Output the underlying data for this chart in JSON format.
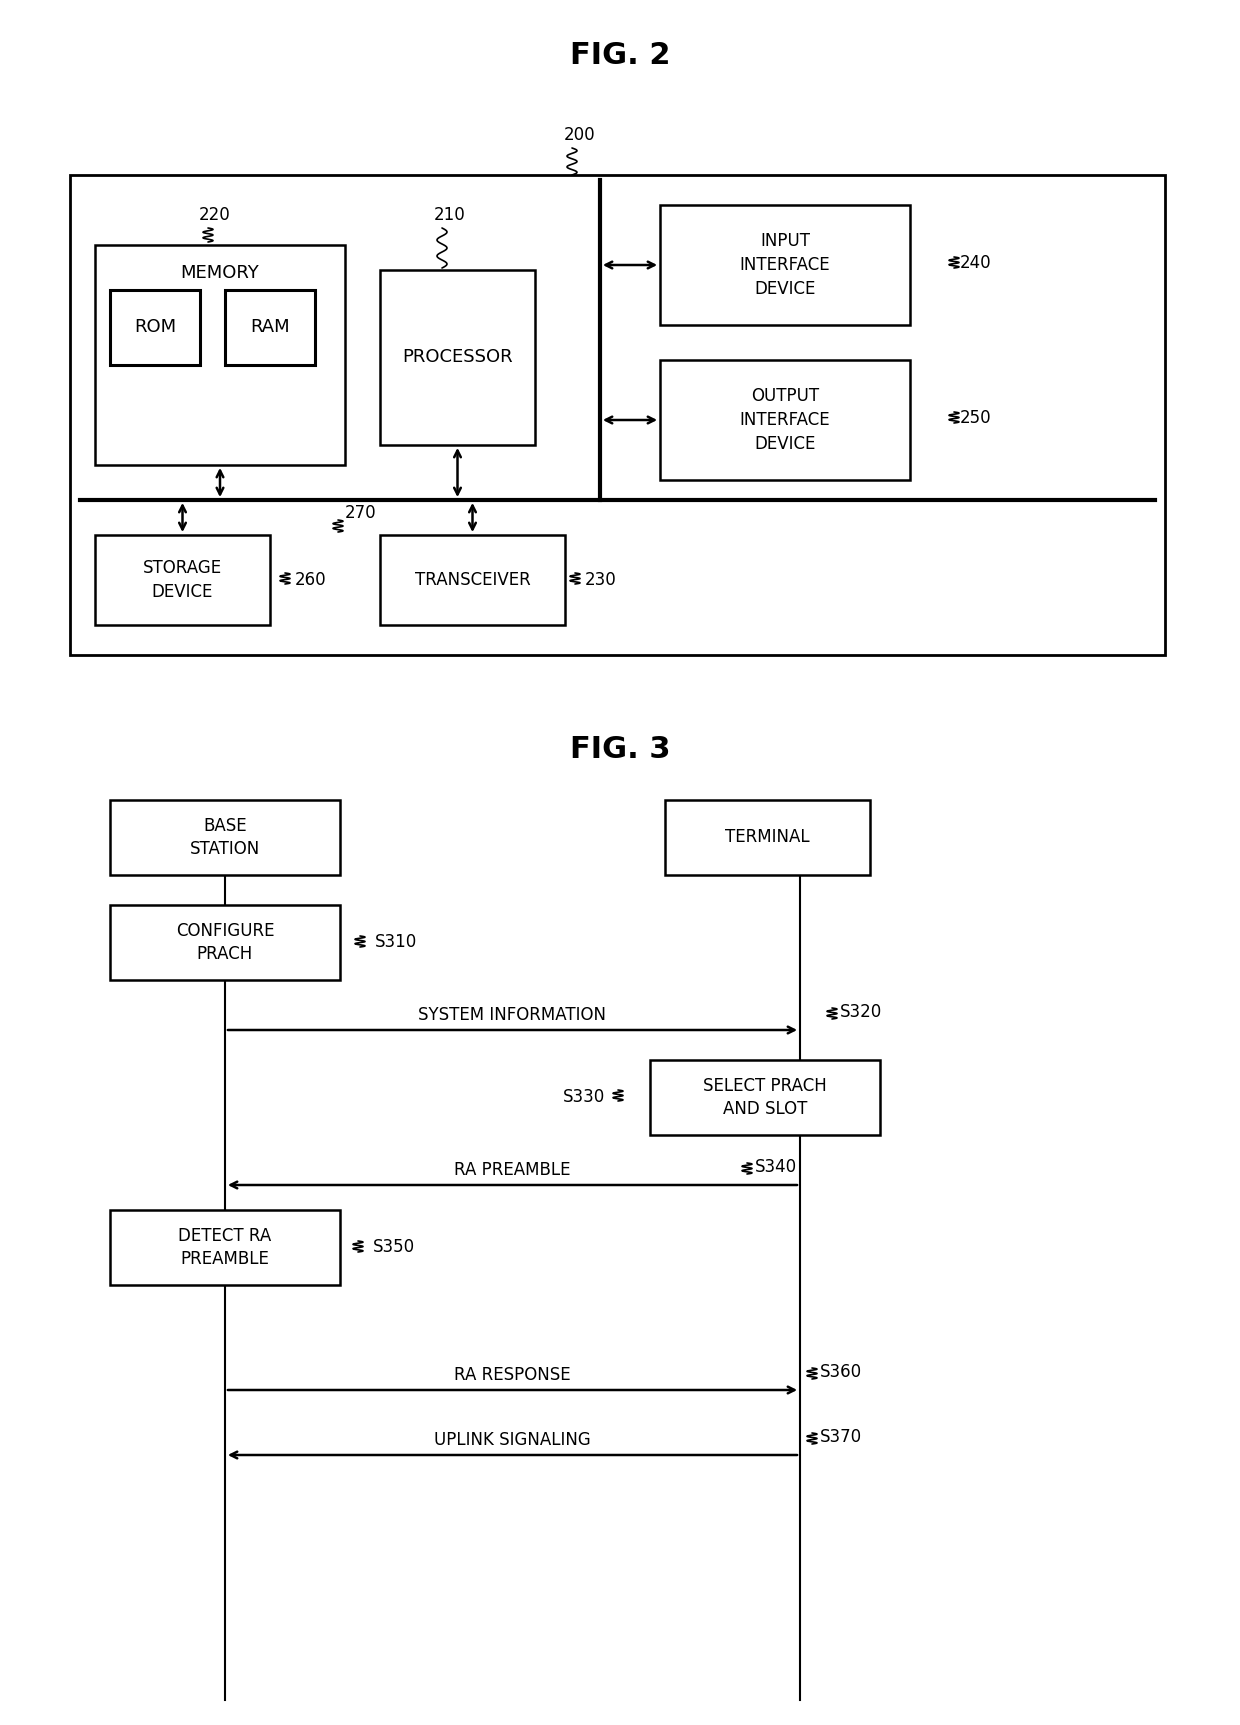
{
  "fig_title1": "FIG. 2",
  "fig_title2": "FIG. 3",
  "bg_color": "#ffffff",
  "fig2": {
    "label_200": "200",
    "label_220": "220",
    "label_210": "210",
    "label_240": "240",
    "label_250": "250",
    "label_260": "260",
    "label_270": "270",
    "label_230": "230",
    "memory_text": "MEMORY",
    "rom_text": "ROM",
    "ram_text": "RAM",
    "processor_text": "PROCESSOR",
    "input_text": "INPUT\nINTERFACE\nDEVICE",
    "output_text": "OUTPUT\nINTERFACE\nDEVICE",
    "storage_text": "STORAGE\nDEVICE",
    "transceiver_text": "TRANSCEIVER"
  },
  "fig3": {
    "bs_text": "BASE\nSTATION",
    "terminal_text": "TERMINAL",
    "configure_prach_text": "CONFIGURE\nPRACH",
    "select_prach_text": "SELECT PRACH\nAND SLOT",
    "detect_ra_text": "DETECT RA\nPREAMBLE",
    "s310": "S310",
    "s320": "S320",
    "s330": "S330",
    "s340": "S340",
    "s350": "S350",
    "s360": "S360",
    "s370": "S370",
    "system_info_text": "SYSTEM INFORMATION",
    "ra_preamble_text": "RA PREAMBLE",
    "ra_response_text": "RA RESPONSE",
    "uplink_text": "UPLINK SIGNALING"
  }
}
